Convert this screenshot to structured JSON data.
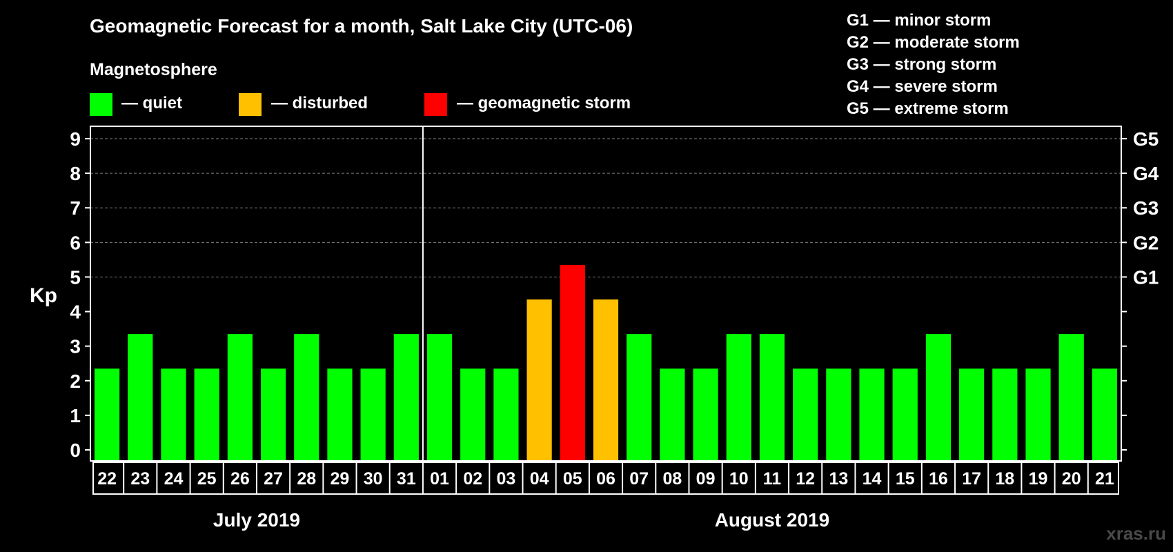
{
  "chart_data": {
    "type": "bar",
    "title": "Geomagnetic Forecast for a month, Salt Lake City (UTC-06)",
    "subtitle": "Magnetosphere",
    "ylabel": "Kp",
    "ylim": [
      0,
      9
    ],
    "yticks": [
      "0",
      "1",
      "2",
      "3",
      "4",
      "5",
      "6",
      "7",
      "8",
      "9"
    ],
    "grid": true,
    "categories": [
      "22",
      "23",
      "24",
      "25",
      "26",
      "27",
      "28",
      "29",
      "30",
      "31",
      "01",
      "02",
      "03",
      "04",
      "05",
      "06",
      "07",
      "08",
      "09",
      "10",
      "11",
      "12",
      "13",
      "14",
      "15",
      "16",
      "17",
      "18",
      "19",
      "20",
      "21"
    ],
    "values": [
      2,
      3,
      2,
      2,
      3,
      2,
      3,
      2,
      2,
      3,
      3,
      2,
      2,
      4,
      5,
      4,
      3,
      2,
      2,
      3,
      3,
      2,
      2,
      2,
      2,
      3,
      2,
      2,
      2,
      3,
      2
    ],
    "status": [
      "quiet",
      "quiet",
      "quiet",
      "quiet",
      "quiet",
      "quiet",
      "quiet",
      "quiet",
      "quiet",
      "quiet",
      "quiet",
      "quiet",
      "quiet",
      "disturbed",
      "storm",
      "disturbed",
      "quiet",
      "quiet",
      "quiet",
      "quiet",
      "quiet",
      "quiet",
      "quiet",
      "quiet",
      "quiet",
      "quiet",
      "quiet",
      "quiet",
      "quiet",
      "quiet",
      "quiet"
    ],
    "months": [
      {
        "label": "July 2019",
        "first_index": 0,
        "last_index": 9
      },
      {
        "label": "August 2019",
        "first_index": 10,
        "last_index": 30
      }
    ],
    "month_divider_after_index": 9,
    "right_axis": [
      {
        "kp": 5,
        "label": "G1"
      },
      {
        "kp": 6,
        "label": "G2"
      },
      {
        "kp": 7,
        "label": "G3"
      },
      {
        "kp": 8,
        "label": "G4"
      },
      {
        "kp": 9,
        "label": "G5"
      }
    ],
    "legend": [
      {
        "key": "quiet",
        "label": "— quiet",
        "color": "#00ff00"
      },
      {
        "key": "disturbed",
        "label": "— disturbed",
        "color": "#ffc000"
      },
      {
        "key": "storm",
        "label": "— geomagnetic storm",
        "color": "#ff0000"
      }
    ],
    "storm_scale": [
      "G1 — minor storm",
      "G2 — moderate storm",
      "G3 — strong storm",
      "G4 — severe storm",
      "G5 — extreme storm"
    ],
    "watermark": "xras.ru",
    "colors": {
      "background": "#000000",
      "axis": "#ffffff",
      "grid": "#808080",
      "quiet": "#00ff00",
      "disturbed": "#ffc000",
      "storm": "#ff0000"
    }
  }
}
